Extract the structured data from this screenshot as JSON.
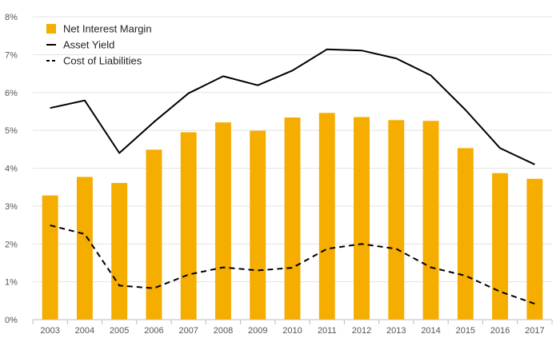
{
  "chart_data": {
    "type": "bar",
    "categories": [
      "2003",
      "2004",
      "2005",
      "2006",
      "2007",
      "2008",
      "2009",
      "2010",
      "2011",
      "2012",
      "2013",
      "2014",
      "2015",
      "2016",
      "2017"
    ],
    "series": [
      {
        "name": "Net Interest Margin",
        "type": "bar",
        "color": "#F5AD00",
        "values": [
          3.28,
          3.77,
          3.61,
          4.49,
          4.95,
          5.21,
          4.99,
          5.34,
          5.46,
          5.35,
          5.27,
          5.25,
          4.53,
          3.87,
          3.72
        ]
      },
      {
        "name": "Asset Yield",
        "type": "line",
        "style": "solid",
        "color": "#000000",
        "values": [
          5.59,
          5.79,
          4.4,
          5.22,
          5.98,
          6.43,
          6.19,
          6.58,
          7.14,
          7.11,
          6.9,
          6.45,
          5.54,
          4.53,
          4.1
        ]
      },
      {
        "name": "Cost of Liabilities",
        "type": "line",
        "style": "dashed",
        "color": "#000000",
        "values": [
          2.49,
          2.26,
          0.9,
          0.83,
          1.19,
          1.38,
          1.3,
          1.37,
          1.87,
          2.0,
          1.87,
          1.38,
          1.16,
          0.74,
          0.42
        ]
      }
    ],
    "y_ticks": [
      "0%",
      "1%",
      "2%",
      "3%",
      "4%",
      "5%",
      "6%",
      "7%",
      "8%"
    ],
    "ylim": [
      0,
      8
    ],
    "y_unit": "%",
    "grid": true,
    "legend_position": "top-left"
  }
}
